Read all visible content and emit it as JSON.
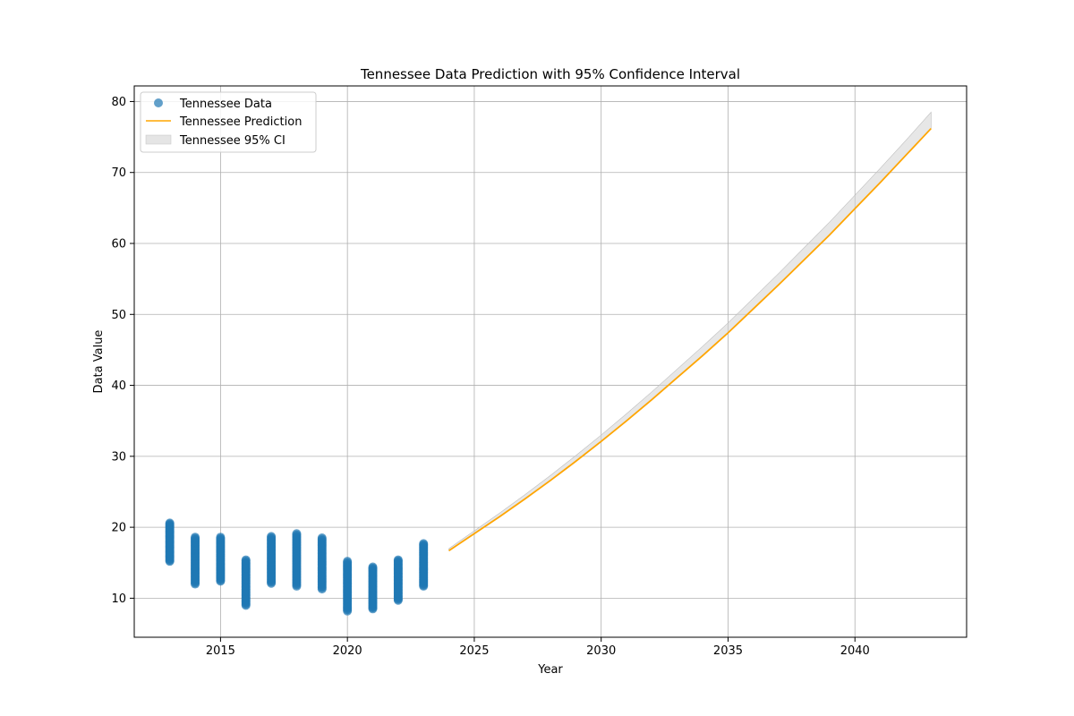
{
  "chart_data": {
    "type": "scatter",
    "title": "Tennessee Data Prediction with 95% Confidence Interval",
    "xlabel": "Year",
    "ylabel": "Data Value",
    "xlim": [
      2011.6,
      2044.4
    ],
    "ylim": [
      4.5,
      82.2
    ],
    "x_ticks": [
      2015,
      2020,
      2025,
      2030,
      2035,
      2040
    ],
    "y_ticks": [
      10,
      20,
      30,
      40,
      50,
      60,
      70,
      80
    ],
    "grid": true,
    "legend_position": "top-left",
    "colors": {
      "data": "#1f77b4",
      "prediction": "#ffa500",
      "ci": "#d3d3d3"
    },
    "series": [
      {
        "name": "Tennessee Data",
        "kind": "scatter",
        "ranges": [
          {
            "x": 2013,
            "min": 15.2,
            "max": 20.6
          },
          {
            "x": 2014,
            "min": 12.0,
            "max": 18.6
          },
          {
            "x": 2015,
            "min": 12.4,
            "max": 18.6
          },
          {
            "x": 2016,
            "min": 9.0,
            "max": 15.4
          },
          {
            "x": 2017,
            "min": 12.1,
            "max": 18.7
          },
          {
            "x": 2018,
            "min": 11.7,
            "max": 19.1
          },
          {
            "x": 2019,
            "min": 11.3,
            "max": 18.5
          },
          {
            "x": 2020,
            "min": 8.2,
            "max": 15.2
          },
          {
            "x": 2021,
            "min": 8.5,
            "max": 14.4
          },
          {
            "x": 2022,
            "min": 9.7,
            "max": 15.4
          },
          {
            "x": 2023,
            "min": 11.7,
            "max": 17.7
          }
        ]
      },
      {
        "name": "Tennessee Prediction",
        "kind": "line",
        "x": [
          2024,
          2025,
          2026,
          2027,
          2028,
          2029,
          2030,
          2031,
          2032,
          2033,
          2034,
          2035,
          2036,
          2037,
          2038,
          2039,
          2040,
          2041,
          2042,
          2043
        ],
        "y": [
          16.7,
          19.1,
          21.5,
          24.0,
          26.6,
          29.3,
          32.1,
          35.0,
          38.0,
          41.1,
          44.2,
          47.4,
          50.8,
          54.2,
          57.7,
          61.2,
          64.9,
          68.6,
          72.4,
          76.2
        ]
      },
      {
        "name": "Tennessee 95% CI",
        "kind": "band",
        "x": [
          2024,
          2025,
          2026,
          2027,
          2028,
          2029,
          2030,
          2031,
          2032,
          2033,
          2034,
          2035,
          2036,
          2037,
          2038,
          2039,
          2040,
          2041,
          2042,
          2043
        ],
        "lower": [
          16.7,
          19.1,
          21.5,
          24.0,
          26.6,
          29.3,
          32.1,
          35.0,
          38.0,
          41.1,
          44.2,
          47.4,
          50.8,
          54.2,
          57.7,
          61.2,
          64.9,
          68.6,
          72.4,
          76.2
        ],
        "upper": [
          17.0,
          19.5,
          22.0,
          24.6,
          27.3,
          30.1,
          33.0,
          36.0,
          39.1,
          42.3,
          45.5,
          48.8,
          52.3,
          55.8,
          59.4,
          63.0,
          66.8,
          70.6,
          74.5,
          78.5
        ]
      }
    ]
  }
}
